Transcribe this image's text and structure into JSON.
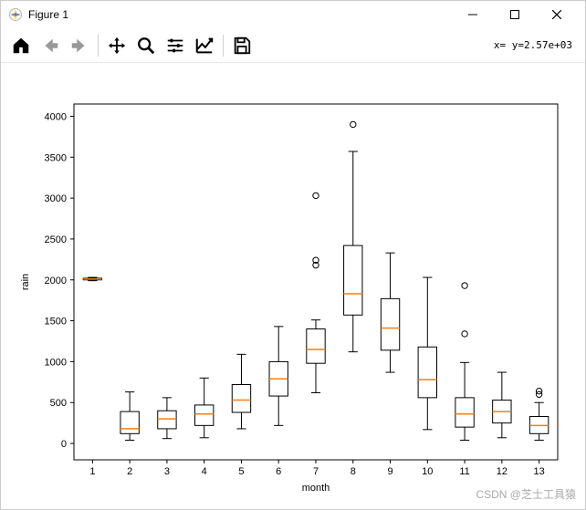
{
  "window": {
    "title": "Figure 1"
  },
  "toolbar": {
    "coord_text": "x=  y=2.57e+03"
  },
  "watermark": "CSDN @芝士工具猿",
  "chart": {
    "type": "boxplot",
    "xlabel": "month",
    "ylabel": "rain",
    "xlim": [
      0.5,
      13.5
    ],
    "ylim": [
      -200,
      4150
    ],
    "ytick_step": 500,
    "yticks": [
      0,
      500,
      1000,
      1500,
      2000,
      2500,
      3000,
      3500,
      4000
    ],
    "xticks": [
      1,
      2,
      3,
      4,
      5,
      6,
      7,
      8,
      9,
      10,
      11,
      12,
      13
    ],
    "background_color": "#ffffff",
    "box_edge_color": "#000000",
    "median_color": "#ff7f0e",
    "whisker_color": "#000000",
    "outlier_marker": "circle",
    "outlier_color": "#000000",
    "box_width": 0.5,
    "cap_width": 0.25,
    "label_fontsize": 11,
    "tick_fontsize": 11,
    "series": [
      {
        "x": 1,
        "q1": 2000,
        "median": 2010,
        "q3": 2020,
        "lo": 1990,
        "hi": 2030,
        "outliers": []
      },
      {
        "x": 2,
        "q1": 120,
        "median": 180,
        "q3": 390,
        "lo": 40,
        "hi": 630,
        "outliers": []
      },
      {
        "x": 3,
        "q1": 180,
        "median": 300,
        "q3": 400,
        "lo": 60,
        "hi": 560,
        "outliers": []
      },
      {
        "x": 4,
        "q1": 220,
        "median": 360,
        "q3": 470,
        "lo": 70,
        "hi": 800,
        "outliers": []
      },
      {
        "x": 5,
        "q1": 380,
        "median": 530,
        "q3": 720,
        "lo": 180,
        "hi": 1090,
        "outliers": []
      },
      {
        "x": 6,
        "q1": 580,
        "median": 790,
        "q3": 1000,
        "lo": 220,
        "hi": 1430,
        "outliers": []
      },
      {
        "x": 7,
        "q1": 980,
        "median": 1150,
        "q3": 1400,
        "lo": 620,
        "hi": 1510,
        "outliers": [
          2180,
          2240,
          3030
        ]
      },
      {
        "x": 8,
        "q1": 1570,
        "median": 1830,
        "q3": 2420,
        "lo": 1120,
        "hi": 3570,
        "outliers": [
          3900
        ]
      },
      {
        "x": 9,
        "q1": 1140,
        "median": 1410,
        "q3": 1770,
        "lo": 870,
        "hi": 2330,
        "outliers": []
      },
      {
        "x": 10,
        "q1": 560,
        "median": 780,
        "q3": 1180,
        "lo": 170,
        "hi": 2030,
        "outliers": []
      },
      {
        "x": 11,
        "q1": 200,
        "median": 360,
        "q3": 560,
        "lo": 40,
        "hi": 990,
        "outliers": [
          1340,
          1930
        ]
      },
      {
        "x": 12,
        "q1": 250,
        "median": 390,
        "q3": 530,
        "lo": 70,
        "hi": 870,
        "outliers": []
      },
      {
        "x": 13,
        "q1": 120,
        "median": 220,
        "q3": 330,
        "lo": 40,
        "hi": 500,
        "outliers": [
          600,
          640
        ]
      }
    ]
  }
}
